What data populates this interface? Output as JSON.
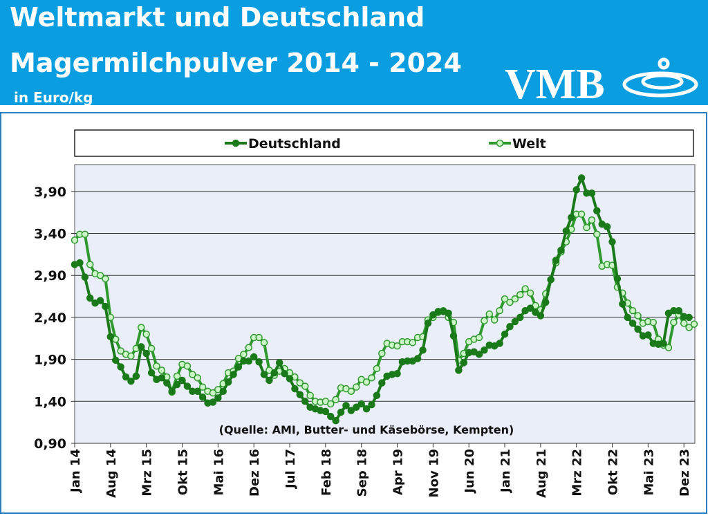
{
  "header": {
    "logo": "VMB"
  },
  "chart_data": {
    "type": "line",
    "title": "Weltmarkt und Deutschland",
    "subtitle": "Magermilchpulver 2014 - 2024",
    "y_label": "in Euro/kg",
    "annotation": "(Quelle: AMI, Butter- und Käsebörse, Kempten)",
    "categories": [
      "Jan 14",
      null,
      null,
      null,
      null,
      null,
      null,
      "Aug 14",
      null,
      null,
      null,
      null,
      null,
      null,
      "Mrz 15",
      null,
      null,
      null,
      null,
      null,
      null,
      "Okt 15",
      null,
      null,
      null,
      null,
      null,
      null,
      "Mai 16",
      null,
      null,
      null,
      null,
      null,
      null,
      "Dez 16",
      null,
      null,
      null,
      null,
      null,
      null,
      "Jul 17",
      null,
      null,
      null,
      null,
      null,
      null,
      "Feb 18",
      null,
      null,
      null,
      null,
      null,
      null,
      "Sep 18",
      null,
      null,
      null,
      null,
      null,
      null,
      "Apr 19",
      null,
      null,
      null,
      null,
      null,
      null,
      "Nov 19",
      null,
      null,
      null,
      null,
      null,
      null,
      "Jun 20",
      null,
      null,
      null,
      null,
      null,
      null,
      "Jan 21",
      null,
      null,
      null,
      null,
      null,
      null,
      "Aug 21",
      null,
      null,
      null,
      null,
      null,
      null,
      "Mrz 22",
      null,
      null,
      null,
      null,
      null,
      null,
      "Okt 22",
      null,
      null,
      null,
      null,
      null,
      null,
      "Mai 23",
      null,
      null,
      null,
      null,
      null,
      null,
      "Dez 23",
      null,
      null
    ],
    "series": [
      {
        "name": "Deutschland",
        "color": "#1a7a1a",
        "marker_fill": "#1a7a1a",
        "values": [
          3.03,
          3.05,
          2.88,
          2.63,
          2.57,
          2.6,
          2.53,
          2.17,
          1.89,
          1.81,
          1.69,
          1.64,
          1.7,
          2.05,
          1.97,
          1.74,
          1.66,
          1.68,
          1.62,
          1.52,
          1.6,
          1.65,
          1.58,
          1.52,
          1.52,
          1.45,
          1.38,
          1.39,
          1.44,
          1.52,
          1.63,
          1.72,
          1.81,
          1.88,
          1.88,
          1.93,
          1.87,
          1.72,
          1.65,
          1.74,
          1.86,
          1.73,
          1.67,
          1.55,
          1.48,
          1.4,
          1.33,
          1.31,
          1.29,
          1.28,
          1.22,
          1.17,
          1.27,
          1.35,
          1.29,
          1.33,
          1.37,
          1.31,
          1.36,
          1.47,
          1.62,
          1.7,
          1.72,
          1.73,
          1.87,
          1.88,
          1.88,
          1.91,
          2.01,
          2.33,
          2.43,
          2.47,
          2.47,
          2.45,
          2.18,
          1.77,
          1.86,
          1.98,
          1.99,
          1.96,
          2.01,
          2.07,
          2.06,
          2.09,
          2.2,
          2.29,
          2.35,
          2.4,
          2.48,
          2.51,
          2.46,
          2.42,
          2.58,
          2.85,
          3.08,
          3.2,
          3.43,
          3.59,
          3.92,
          4.06,
          3.88,
          3.88,
          3.67,
          3.51,
          3.48,
          3.3,
          2.86,
          2.56,
          2.4,
          2.33,
          2.26,
          2.18,
          2.19,
          2.09,
          2.08,
          2.09,
          2.45,
          2.48,
          2.48,
          2.41,
          2.4,
          null
        ]
      },
      {
        "name": "Welt",
        "color": "#2e9a2e",
        "marker_fill": "#ccf5c8",
        "values": [
          3.32,
          3.39,
          3.39,
          3.03,
          2.92,
          2.9,
          2.86,
          2.4,
          2.14,
          2.0,
          1.96,
          1.94,
          2.03,
          2.28,
          2.2,
          2.03,
          1.82,
          1.77,
          1.69,
          1.51,
          1.7,
          1.84,
          1.82,
          1.72,
          1.68,
          1.57,
          1.52,
          1.5,
          1.54,
          1.61,
          1.74,
          1.76,
          1.91,
          1.96,
          2.04,
          2.16,
          2.16,
          2.1,
          1.77,
          1.71,
          1.76,
          1.79,
          1.74,
          1.69,
          1.62,
          1.58,
          1.47,
          1.4,
          1.39,
          1.4,
          1.37,
          1.42,
          1.56,
          1.55,
          1.52,
          1.57,
          1.66,
          1.63,
          1.68,
          1.79,
          1.97,
          2.09,
          2.07,
          2.06,
          2.11,
          2.11,
          2.1,
          2.16,
          2.17,
          2.37,
          2.4,
          2.46,
          2.48,
          2.4,
          2.34,
          1.89,
          1.97,
          2.11,
          2.14,
          2.16,
          2.36,
          2.44,
          2.37,
          2.48,
          2.62,
          2.58,
          2.62,
          2.67,
          2.74,
          2.69,
          2.54,
          2.49,
          2.68,
          2.85,
          3.05,
          3.18,
          3.3,
          3.45,
          3.63,
          3.63,
          3.47,
          3.56,
          3.39,
          3.01,
          3.03,
          3.02,
          2.76,
          2.69,
          2.57,
          2.48,
          2.42,
          2.33,
          2.35,
          2.34,
          2.14,
          2.07,
          2.04,
          2.34,
          2.43,
          2.33,
          2.28,
          2.32
        ]
      }
    ],
    "ylim": [
      0.9,
      4.22
    ],
    "yticks": [
      {
        "value": 0.9,
        "label": "0,90"
      },
      {
        "value": 1.4,
        "label": "1,40"
      },
      {
        "value": 1.9,
        "label": "1,90"
      },
      {
        "value": 2.4,
        "label": "2,40"
      },
      {
        "value": 2.9,
        "label": "2,90"
      },
      {
        "value": 3.4,
        "label": "3,40"
      },
      {
        "value": 3.9,
        "label": "3,90"
      }
    ],
    "grid": true
  }
}
